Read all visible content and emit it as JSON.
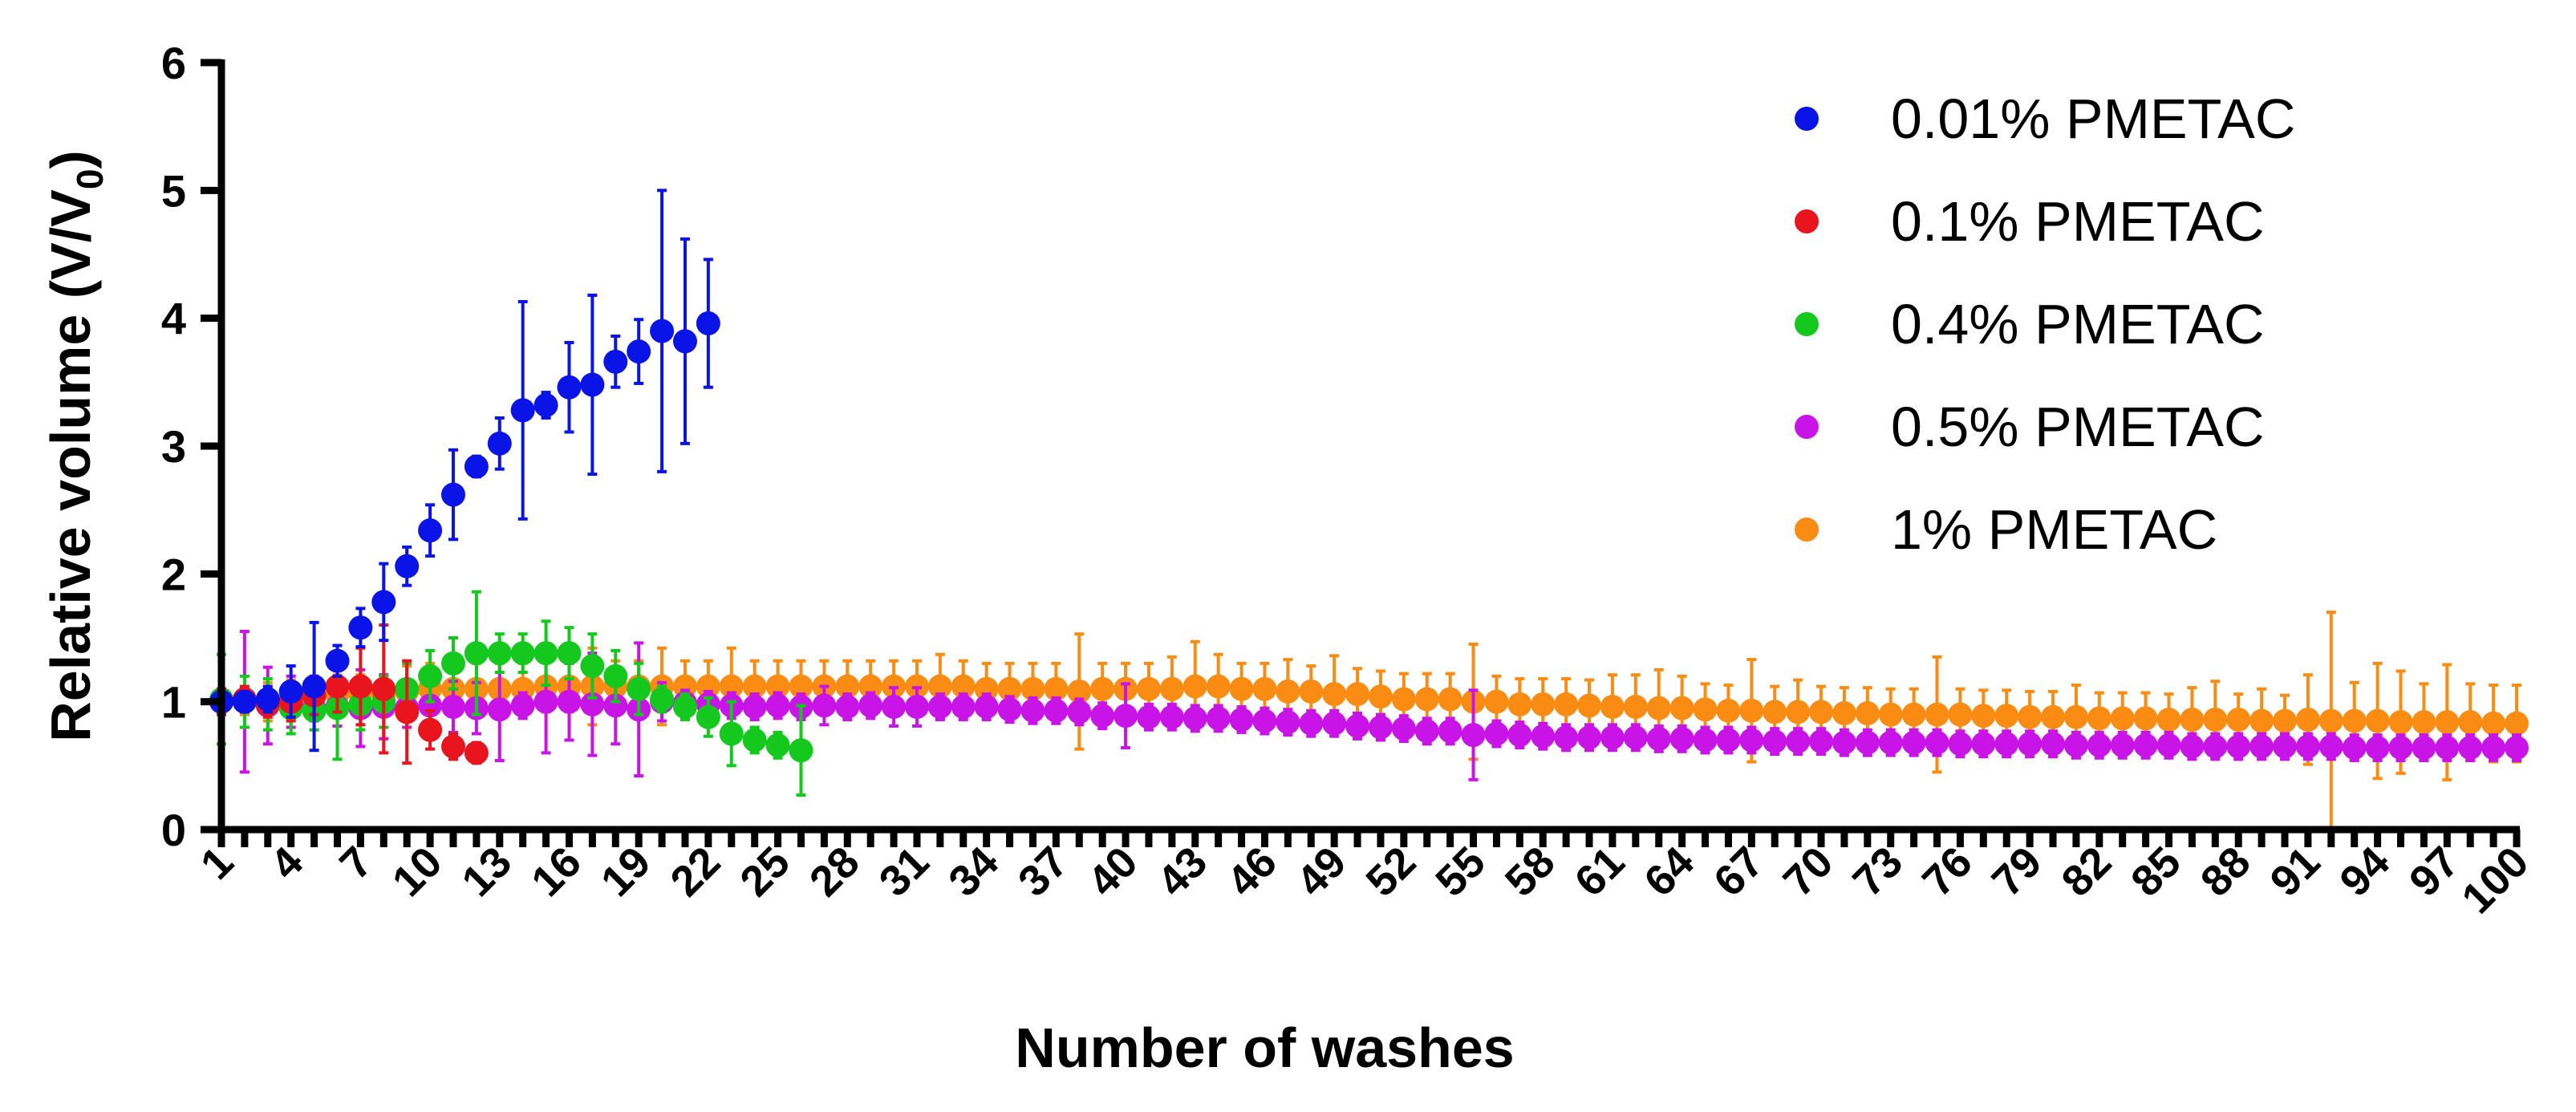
{
  "chart_data": {
    "type": "scatter",
    "title": "",
    "xlabel": "Number of washes",
    "ylabel": "Relative volume (V/V0)",
    "ylabel_parts": {
      "main": "Relative volume (V/V",
      "sub": "0",
      "close": ")"
    },
    "xlim": [
      1,
      100
    ],
    "ylim": [
      0,
      6
    ],
    "y_ticks": [
      0,
      1,
      2,
      3,
      4,
      5,
      6
    ],
    "x_ticks": [
      1,
      4,
      7,
      10,
      13,
      16,
      19,
      22,
      25,
      28,
      31,
      34,
      37,
      40,
      43,
      46,
      49,
      52,
      55,
      58,
      61,
      64,
      67,
      70,
      73,
      76,
      79,
      82,
      85,
      88,
      91,
      94,
      97,
      100
    ],
    "legend_position": "top-right",
    "grid": false,
    "error_bars": true,
    "series": [
      {
        "name": "0.01% PMETAC",
        "color": "#0a14e6",
        "x": [
          1,
          2,
          3,
          4,
          5,
          6,
          7,
          8,
          9,
          10,
          11,
          12,
          13,
          14,
          15,
          16,
          17,
          18,
          19,
          20,
          21,
          22
        ],
        "y": [
          1.0,
          1.0,
          1.02,
          1.08,
          1.12,
          1.32,
          1.58,
          1.78,
          2.06,
          2.34,
          2.62,
          2.84,
          3.02,
          3.28,
          3.32,
          3.46,
          3.48,
          3.66,
          3.74,
          3.9,
          3.82,
          3.96
        ],
        "err": [
          0.05,
          0.08,
          0.1,
          0.2,
          0.5,
          0.12,
          0.15,
          0.3,
          0.15,
          0.2,
          0.35,
          0.08,
          0.2,
          0.85,
          0.1,
          0.35,
          0.7,
          0.2,
          0.25,
          1.1,
          0.8,
          0.5
        ]
      },
      {
        "name": "0.1% PMETAC",
        "color": "#e8141e",
        "x": [
          1,
          2,
          3,
          4,
          5,
          6,
          7,
          8,
          9,
          10,
          11,
          12
        ],
        "y": [
          1.0,
          1.02,
          0.98,
          1.0,
          1.05,
          1.12,
          1.12,
          1.1,
          0.92,
          0.78,
          0.65,
          0.6
        ],
        "err": [
          0.1,
          0.1,
          0.1,
          0.15,
          0.15,
          0.2,
          0.3,
          0.5,
          0.4,
          0.15,
          0.1,
          0.08
        ]
      },
      {
        "name": "0.4% PMETAC",
        "color": "#14c81e",
        "x": [
          1,
          2,
          3,
          4,
          5,
          6,
          7,
          8,
          9,
          10,
          11,
          12,
          13,
          14,
          15,
          16,
          17,
          18,
          19,
          20,
          21,
          22,
          23,
          24,
          25,
          26
        ],
        "y": [
          1.02,
          1.0,
          0.98,
          0.95,
          0.93,
          0.95,
          0.98,
          1.0,
          1.1,
          1.2,
          1.3,
          1.38,
          1.38,
          1.38,
          1.38,
          1.38,
          1.28,
          1.2,
          1.1,
          1.02,
          0.96,
          0.88,
          0.75,
          0.7,
          0.66,
          0.62
        ],
        "err": [
          0.35,
          0.2,
          0.2,
          0.2,
          0.15,
          0.4,
          0.2,
          0.2,
          0.2,
          0.2,
          0.2,
          0.48,
          0.15,
          0.15,
          0.25,
          0.2,
          0.25,
          0.2,
          0.2,
          0.1,
          0.1,
          0.15,
          0.25,
          0.1,
          0.1,
          0.35
        ]
      },
      {
        "name": "0.5% PMETAC",
        "color": "#c814e6",
        "x": [
          1,
          2,
          3,
          4,
          5,
          6,
          7,
          8,
          9,
          10,
          11,
          12,
          13,
          14,
          15,
          16,
          17,
          18,
          19,
          20,
          21,
          22,
          23,
          24,
          25,
          26,
          27,
          28,
          29,
          30,
          31,
          32,
          33,
          34,
          35,
          36,
          37,
          38,
          39,
          40,
          41,
          42,
          43,
          44,
          45,
          46,
          47,
          48,
          49,
          50,
          51,
          52,
          53,
          54,
          55,
          56,
          57,
          58,
          59,
          60,
          61,
          62,
          63,
          64,
          65,
          66,
          67,
          68,
          69,
          70,
          71,
          72,
          73,
          74,
          75,
          76,
          77,
          78,
          79,
          80,
          81,
          82,
          83,
          84,
          85,
          86,
          87,
          88,
          89,
          90,
          91,
          92,
          93,
          94,
          95,
          96,
          97,
          98,
          99,
          100
        ],
        "y": [
          1.0,
          1.0,
          0.97,
          1.0,
          0.95,
          0.96,
          0.95,
          0.96,
          0.95,
          0.97,
          0.96,
          0.95,
          0.94,
          0.97,
          1.0,
          1.0,
          0.98,
          0.97,
          0.94,
          1.0,
          0.99,
          0.98,
          0.97,
          0.96,
          0.97,
          0.96,
          0.97,
          0.96,
          0.97,
          0.96,
          0.96,
          0.96,
          0.96,
          0.96,
          0.94,
          0.93,
          0.93,
          0.92,
          0.89,
          0.89,
          0.88,
          0.88,
          0.87,
          0.87,
          0.86,
          0.85,
          0.84,
          0.83,
          0.83,
          0.81,
          0.8,
          0.79,
          0.77,
          0.77,
          0.74,
          0.75,
          0.74,
          0.73,
          0.72,
          0.72,
          0.72,
          0.72,
          0.71,
          0.71,
          0.7,
          0.7,
          0.7,
          0.69,
          0.69,
          0.69,
          0.68,
          0.68,
          0.68,
          0.68,
          0.68,
          0.67,
          0.67,
          0.67,
          0.67,
          0.67,
          0.66,
          0.66,
          0.66,
          0.66,
          0.66,
          0.65,
          0.65,
          0.65,
          0.65,
          0.65,
          0.65,
          0.65,
          0.64,
          0.64,
          0.64,
          0.64,
          0.64,
          0.64,
          0.64,
          0.64
        ],
        "err": [
          0.1,
          0.55,
          0.3,
          0.2,
          0.1,
          0.15,
          0.3,
          0.25,
          0.15,
          0.2,
          0.2,
          0.2,
          0.4,
          0.1,
          0.4,
          0.3,
          0.4,
          0.3,
          0.52,
          0.15,
          0.1,
          0.1,
          0.1,
          0.1,
          0.1,
          0.1,
          0.15,
          0.1,
          0.1,
          0.15,
          0.15,
          0.1,
          0.1,
          0.1,
          0.1,
          0.1,
          0.1,
          0.1,
          0.1,
          0.25,
          0.1,
          0.1,
          0.1,
          0.1,
          0.1,
          0.1,
          0.1,
          0.1,
          0.1,
          0.1,
          0.1,
          0.1,
          0.1,
          0.1,
          0.35,
          0.1,
          0.1,
          0.1,
          0.1,
          0.1,
          0.1,
          0.1,
          0.1,
          0.1,
          0.1,
          0.1,
          0.1,
          0.1,
          0.1,
          0.1,
          0.1,
          0.1,
          0.1,
          0.1,
          0.1,
          0.1,
          0.1,
          0.1,
          0.1,
          0.1,
          0.1,
          0.1,
          0.1,
          0.1,
          0.1,
          0.1,
          0.1,
          0.1,
          0.1,
          0.1,
          0.1,
          0.1,
          0.1,
          0.1,
          0.1,
          0.1,
          0.1,
          0.1,
          0.1,
          0.1
        ]
      },
      {
        "name": "1% PMETAC",
        "color": "#fa8c14",
        "x": [
          1,
          2,
          3,
          4,
          5,
          6,
          7,
          8,
          9,
          10,
          11,
          12,
          13,
          14,
          15,
          16,
          17,
          18,
          19,
          20,
          21,
          22,
          23,
          24,
          25,
          26,
          27,
          28,
          29,
          30,
          31,
          32,
          33,
          34,
          35,
          36,
          37,
          38,
          39,
          40,
          41,
          42,
          43,
          44,
          45,
          46,
          47,
          48,
          49,
          50,
          51,
          52,
          53,
          54,
          55,
          56,
          57,
          58,
          59,
          60,
          61,
          62,
          63,
          64,
          65,
          66,
          67,
          68,
          69,
          70,
          71,
          72,
          73,
          74,
          75,
          76,
          77,
          78,
          79,
          80,
          81,
          82,
          83,
          84,
          85,
          86,
          87,
          88,
          89,
          90,
          91,
          92,
          93,
          94,
          95,
          96,
          97,
          98,
          99,
          100
        ],
        "y": [
          1.0,
          1.0,
          1.0,
          1.02,
          1.04,
          1.06,
          1.06,
          1.06,
          1.08,
          1.1,
          1.1,
          1.1,
          1.1,
          1.1,
          1.12,
          1.12,
          1.12,
          1.12,
          1.12,
          1.12,
          1.12,
          1.12,
          1.12,
          1.12,
          1.12,
          1.12,
          1.12,
          1.12,
          1.12,
          1.12,
          1.12,
          1.12,
          1.12,
          1.1,
          1.1,
          1.1,
          1.1,
          1.08,
          1.1,
          1.1,
          1.1,
          1.1,
          1.12,
          1.12,
          1.1,
          1.1,
          1.08,
          1.08,
          1.06,
          1.06,
          1.04,
          1.02,
          1.02,
          1.02,
          1.0,
          1.0,
          0.98,
          0.98,
          0.98,
          0.97,
          0.96,
          0.96,
          0.95,
          0.95,
          0.94,
          0.93,
          0.93,
          0.92,
          0.92,
          0.92,
          0.91,
          0.91,
          0.9,
          0.9,
          0.9,
          0.9,
          0.89,
          0.89,
          0.88,
          0.88,
          0.88,
          0.87,
          0.87,
          0.87,
          0.86,
          0.86,
          0.86,
          0.86,
          0.85,
          0.85,
          0.86,
          0.85,
          0.85,
          0.85,
          0.84,
          0.84,
          0.84,
          0.84,
          0.83,
          0.83
        ],
        "err": [
          0.1,
          0.1,
          0.15,
          0.15,
          0.15,
          0.15,
          0.15,
          0.15,
          0.2,
          0.2,
          0.2,
          0.2,
          0.2,
          0.2,
          0.2,
          0.2,
          0.3,
          0.2,
          0.2,
          0.3,
          0.2,
          0.2,
          0.3,
          0.2,
          0.2,
          0.2,
          0.2,
          0.2,
          0.2,
          0.2,
          0.2,
          0.25,
          0.2,
          0.2,
          0.2,
          0.2,
          0.2,
          0.45,
          0.2,
          0.2,
          0.2,
          0.25,
          0.35,
          0.25,
          0.2,
          0.2,
          0.25,
          0.2,
          0.3,
          0.2,
          0.2,
          0.2,
          0.2,
          0.2,
          0.45,
          0.2,
          0.2,
          0.2,
          0.2,
          0.2,
          0.25,
          0.25,
          0.3,
          0.25,
          0.2,
          0.2,
          0.4,
          0.2,
          0.25,
          0.2,
          0.2,
          0.2,
          0.2,
          0.2,
          0.45,
          0.2,
          0.2,
          0.2,
          0.2,
          0.2,
          0.25,
          0.2,
          0.2,
          0.2,
          0.2,
          0.25,
          0.3,
          0.2,
          0.25,
          0.2,
          0.35,
          0.85,
          0.3,
          0.45,
          0.4,
          0.3,
          0.45,
          0.3,
          0.3,
          0.3
        ]
      }
    ]
  }
}
